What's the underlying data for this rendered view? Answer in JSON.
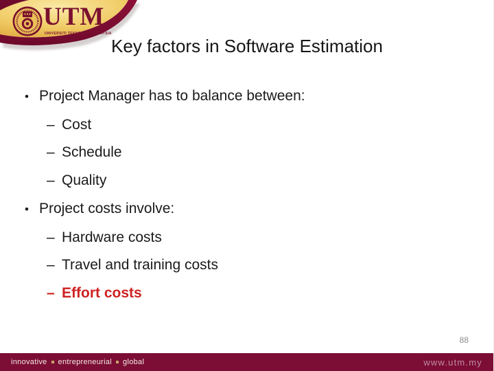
{
  "slide": {
    "title": "Key factors in Software Estimation",
    "page_number": "88",
    "logo": {
      "acronym": "UTM",
      "caption": "UNIVERSITI TEKNOLOGI MALAYSIA"
    },
    "markers": {
      "bullet": "•",
      "dash": "–"
    },
    "bullets": [
      {
        "level": 1,
        "text": "Project Manager has to balance between:"
      },
      {
        "level": 2,
        "text": "Cost"
      },
      {
        "level": 2,
        "text": "Schedule"
      },
      {
        "level": 2,
        "text": "Quality"
      },
      {
        "level": 1,
        "text": "Project costs involve:"
      },
      {
        "level": 2,
        "text": "Hardware costs"
      },
      {
        "level": 2,
        "text": "Travel and training costs"
      },
      {
        "level": 2,
        "text": "Effort costs",
        "emphasis": true
      }
    ],
    "footer": {
      "tagline_words": [
        "innovative",
        "entrepreneurial",
        "global"
      ],
      "url": "www.utm.my"
    },
    "colors": {
      "bar_maroon": "#7C0D35",
      "logo_maroon": "#7A112E",
      "gold_light": "#F8E59C",
      "gold_dark": "#DFA63B",
      "emphasis_red": "#CE2222",
      "body_text": "#1A1A1A",
      "footer_text": "#F3EAE3",
      "separator_gold": "#C5A468",
      "url_text": "#C08DA2",
      "page_number_gray": "#8C8C8C"
    }
  }
}
